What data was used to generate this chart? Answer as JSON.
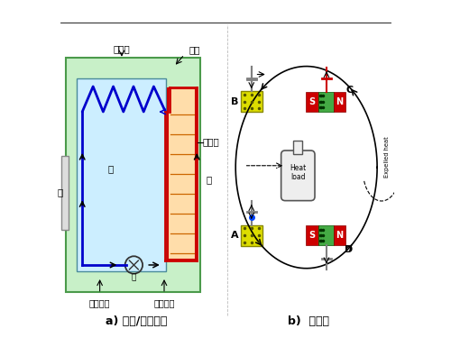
{
  "bg_color": "#ffffff",
  "left_caption": "a) 压缩/膨胀制冷",
  "right_caption": "b)  磁制冷",
  "label_ge_re_ceng": "隔热层",
  "label_xiao_kong": "小孔",
  "label_leng": "冷",
  "label_nuan": "暖",
  "label_beng": "泵",
  "label_men": "门",
  "label_san_re_ban": "散热板",
  "label_di_ya": "低压管道",
  "label_gao_ya": "高压管道",
  "font_size_label": 7.5,
  "font_size_caption": 9
}
